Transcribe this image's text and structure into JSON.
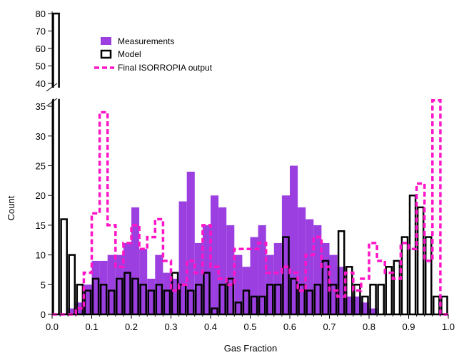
{
  "chart_data": {
    "type": "bar",
    "title": "",
    "xlabel": "Gas Fraction",
    "ylabel": "Count",
    "xlim": [
      0.0,
      1.0
    ],
    "ylim": [
      0,
      80
    ],
    "y_axis_break": {
      "lower_max": 36,
      "upper_min": 36,
      "upper_max": 80
    },
    "grid": false,
    "legend_position": "top-left",
    "x_ticks": [
      "0.0",
      "0.1",
      "0.2",
      "0.3",
      "0.4",
      "0.5",
      "0.6",
      "0.7",
      "0.8",
      "0.9",
      "1.0"
    ],
    "y_ticks_lower": [
      "0",
      "5",
      "10",
      "15",
      "20",
      "25",
      "30",
      "35"
    ],
    "y_ticks_upper": [
      "40",
      "50",
      "60",
      "70",
      "80"
    ],
    "bin_width": 0.02,
    "bin_starts": [
      0.0,
      0.02,
      0.04,
      0.06,
      0.08,
      0.1,
      0.12,
      0.14,
      0.16,
      0.18,
      0.2,
      0.22,
      0.24,
      0.26,
      0.28,
      0.3,
      0.32,
      0.34,
      0.36,
      0.38,
      0.4,
      0.42,
      0.44,
      0.46,
      0.48,
      0.5,
      0.52,
      0.54,
      0.56,
      0.58,
      0.6,
      0.62,
      0.64,
      0.66,
      0.68,
      0.7,
      0.72,
      0.74,
      0.76,
      0.78,
      0.8,
      0.82,
      0.84,
      0.86,
      0.88,
      0.9,
      0.92,
      0.94,
      0.96,
      0.98
    ],
    "series": [
      {
        "name": "Measurements",
        "style": "filled-bars",
        "color": "#9b3fe0",
        "values": [
          0,
          0,
          1,
          2,
          5,
          9,
          9,
          10,
          10,
          12,
          18,
          11,
          6,
          10,
          7,
          6,
          19,
          24,
          12,
          15,
          20,
          18,
          15,
          10,
          8,
          13,
          15,
          10,
          12,
          20,
          25,
          18,
          16,
          15,
          12,
          10,
          8,
          3,
          3,
          2,
          1,
          0,
          0,
          0,
          0,
          0,
          0,
          0,
          0,
          0
        ]
      },
      {
        "name": "Model",
        "style": "outline-bars",
        "color": "#000000",
        "values": [
          80,
          16,
          10,
          5,
          4,
          6,
          5,
          4,
          6,
          7,
          6,
          5,
          4,
          5,
          4,
          7,
          5,
          4,
          5,
          7,
          1,
          5,
          6,
          2,
          4,
          3,
          3,
          5,
          5,
          13,
          6,
          5,
          4,
          5,
          9,
          5,
          14,
          8,
          5,
          3,
          5,
          5,
          8,
          9,
          13,
          20,
          18,
          13,
          3,
          3
        ]
      },
      {
        "name": "Final ISORROPIA output",
        "style": "dashed-step",
        "color": "#ff14c8",
        "values": [
          0,
          0,
          0,
          1,
          7,
          17,
          34,
          15,
          8,
          12,
          15,
          11,
          13,
          16,
          9,
          4,
          5,
          9,
          7,
          15,
          8,
          6,
          5,
          11,
          11,
          11,
          12,
          7,
          7,
          8,
          7,
          4,
          10,
          13,
          8,
          4,
          3,
          7,
          4,
          6,
          12,
          9,
          7,
          6,
          12,
          11,
          22,
          9,
          36,
          0
        ]
      }
    ]
  }
}
